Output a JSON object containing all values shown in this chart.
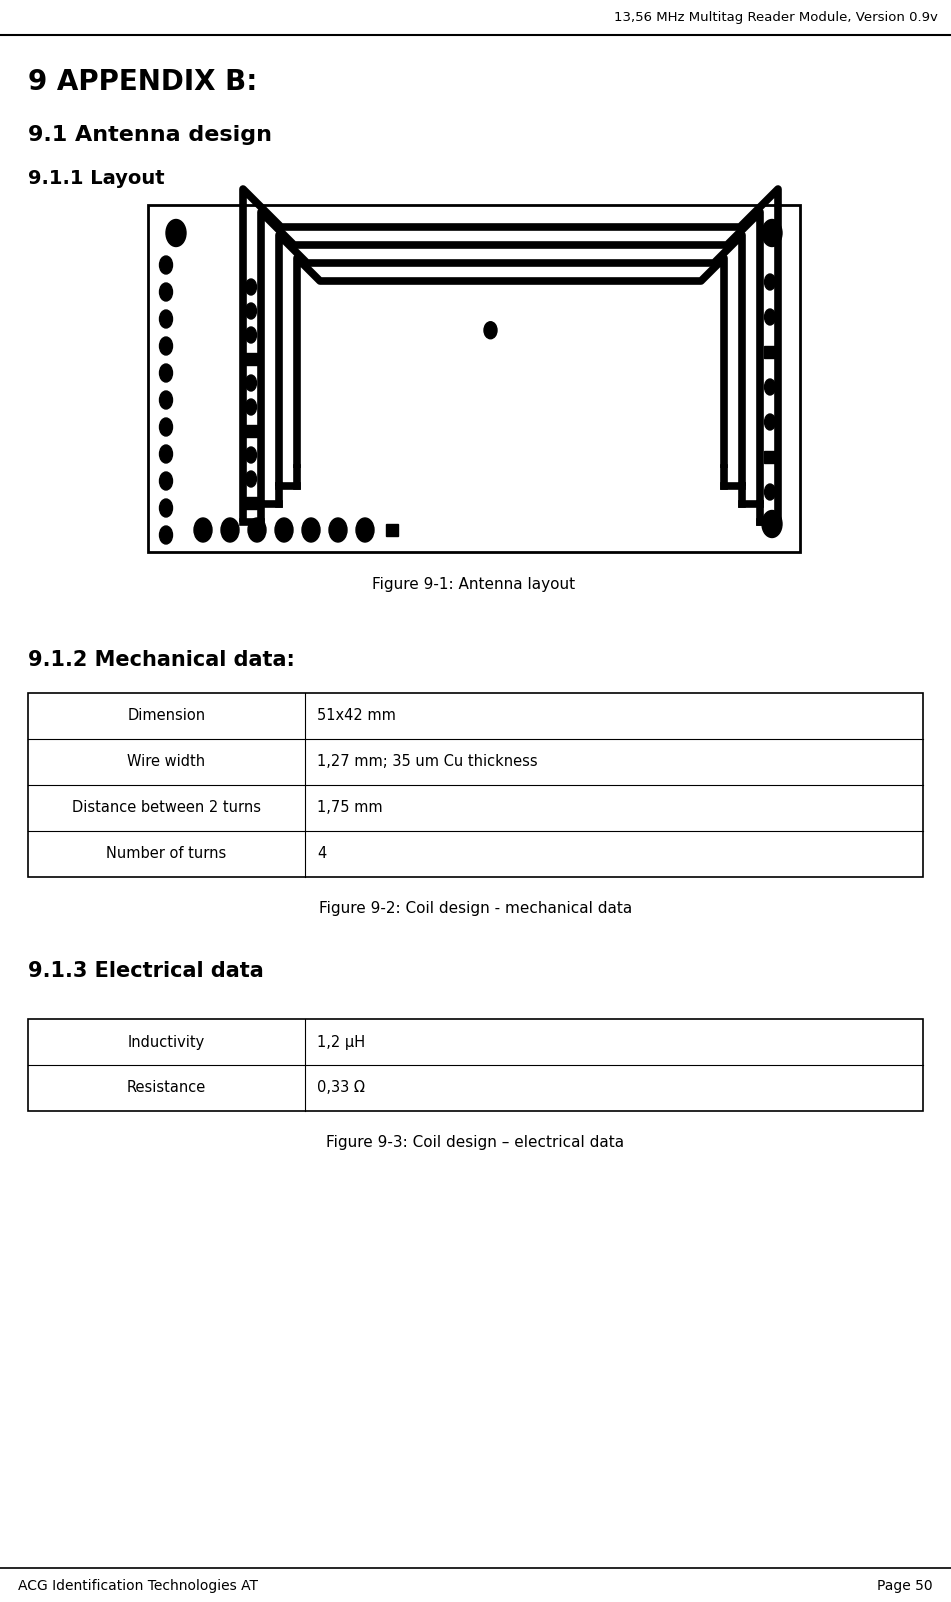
{
  "header_text": "13,56 MHz Multitag Reader Module, Version 0.9v",
  "title1": "9 APPENDIX B:",
  "title2": "9.1 Antenna design",
  "title3": "9.1.1 Layout",
  "fig1_caption": "Figure 9-1: Antenna layout",
  "title4": "9.1.2 Mechanical data:",
  "fig2_caption": "Figure 9-2: Coil design - mechanical data",
  "title5": "9.1.3 Electrical data",
  "fig3_caption": "Figure 9-3: Coil design – electrical data",
  "mech_table": [
    [
      "Dimension",
      "51x42 mm"
    ],
    [
      "Wire width",
      "1,27 mm; 35 um Cu thickness"
    ],
    [
      "Distance between 2 turns",
      "1,75 mm"
    ],
    [
      "Number of turns",
      "4"
    ]
  ],
  "elec_table": [
    [
      "Inductivity",
      "1,2 μH"
    ],
    [
      "Resistance",
      "0,33 Ω"
    ]
  ],
  "footer_left": "ACG Identification Technologies AT",
  "footer_right": "Page 50",
  "bg_color": "#ffffff",
  "text_color": "#000000"
}
